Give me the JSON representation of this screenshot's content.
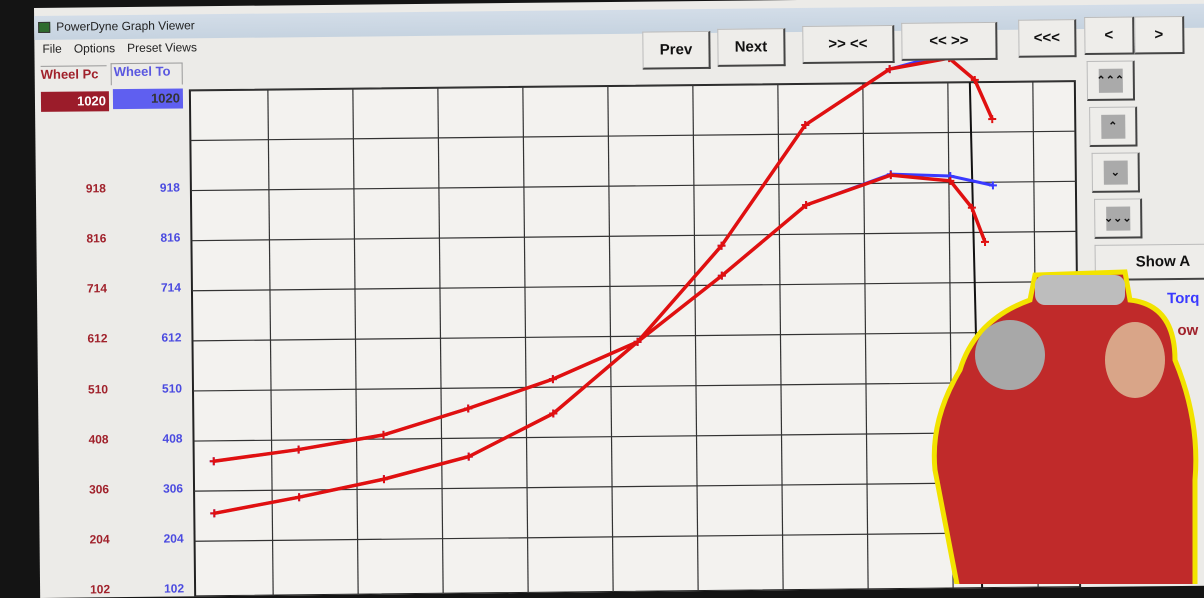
{
  "window": {
    "title": "PowerDyne Graph Viewer"
  },
  "menu": [
    "File",
    "Options",
    "Preset Views"
  ],
  "channels": [
    {
      "label": "Wheel Pc",
      "value": "1020",
      "color": "#9b1c2a"
    },
    {
      "label": "Wheel To",
      "value": "1020",
      "color": "#5f5ff0"
    }
  ],
  "toolbar": {
    "prev": "Prev",
    "next": "Next",
    "zoom_in": ">> <<",
    "zoom_out": "<< >>",
    "far_left": "<<<",
    "left": "<",
    "right": ">"
  },
  "scroll_buttons": [
    {
      "icon": "triple-chevron-up-icon",
      "glyph": "⌃⌃⌃"
    },
    {
      "icon": "chevron-up-icon",
      "glyph": "⌃"
    },
    {
      "icon": "chevron-down-icon",
      "glyph": "⌄"
    },
    {
      "icon": "triple-chevron-down-icon",
      "glyph": "⌄⌄⌄"
    }
  ],
  "side": {
    "show_all": "Show A",
    "torque": "Torq",
    "power": "ow"
  },
  "chart_data": {
    "type": "line",
    "yticks_power": [
      "918",
      "816",
      "714",
      "612",
      "510",
      "408",
      "306",
      "204",
      "102"
    ],
    "yticks_torque": [
      "918",
      "816",
      "714",
      "612",
      "510",
      "408",
      "306",
      "204",
      "102"
    ],
    "ylim": [
      102,
      1020
    ],
    "grid": true,
    "series": [
      {
        "color": "#3a3aff",
        "values": [
          [
            0,
            134
          ],
          [
            1,
            165
          ],
          [
            2,
            200
          ],
          [
            3,
            244
          ],
          [
            4,
            330
          ],
          [
            5,
            474
          ],
          [
            6,
            668
          ],
          [
            7,
            912
          ],
          [
            8,
            1024
          ],
          [
            8.8,
            1060
          ],
          [
            9.2,
            1050
          ]
        ]
      },
      {
        "color": "#e01010",
        "values": [
          [
            0,
            134
          ],
          [
            1,
            165
          ],
          [
            2,
            200
          ],
          [
            3,
            244
          ],
          [
            4,
            330
          ],
          [
            5,
            474
          ],
          [
            6,
            668
          ],
          [
            7,
            912
          ],
          [
            8,
            1024
          ],
          [
            8.7,
            1045
          ],
          [
            9.0,
            1000
          ],
          [
            9.2,
            920
          ]
        ]
      },
      {
        "color": "#3a3aff",
        "values": [
          [
            0,
            240
          ],
          [
            1,
            262
          ],
          [
            2,
            290
          ],
          [
            3,
            342
          ],
          [
            4,
            400
          ],
          [
            5,
            474
          ],
          [
            6,
            607
          ],
          [
            7,
            749
          ],
          [
            8,
            810
          ],
          [
            8.7,
            805
          ],
          [
            9.2,
            785
          ]
        ]
      },
      {
        "color": "#e01010",
        "values": [
          [
            0,
            240
          ],
          [
            1,
            262
          ],
          [
            2,
            290
          ],
          [
            3,
            342
          ],
          [
            4,
            400
          ],
          [
            5,
            474
          ],
          [
            6,
            607
          ],
          [
            7,
            749
          ],
          [
            8,
            808
          ],
          [
            8.7,
            795
          ],
          [
            8.95,
            740
          ],
          [
            9.1,
            670
          ]
        ]
      }
    ]
  }
}
